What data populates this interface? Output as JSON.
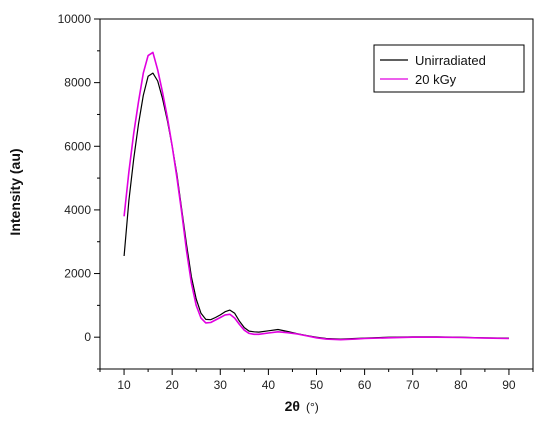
{
  "chart_data": {
    "type": "line",
    "title": "",
    "xlabel": "2θ",
    "xlabel_unit": "(°)",
    "ylabel": "Intensity (au)",
    "xlim": [
      5,
      95
    ],
    "ylim": [
      -1000,
      10000
    ],
    "xticks": [
      10,
      20,
      30,
      40,
      50,
      60,
      70,
      80,
      90
    ],
    "yticks": [
      0,
      2000,
      4000,
      6000,
      8000,
      10000
    ],
    "grid": false,
    "legend_position": "top-right",
    "series": [
      {
        "name": "Unirradiated",
        "color": "#000000",
        "x": [
          10,
          11,
          12,
          13,
          14,
          15,
          16,
          17,
          18,
          19,
          20,
          21,
          22,
          23,
          24,
          25,
          26,
          27,
          28,
          29,
          30,
          31,
          32,
          33,
          34,
          35,
          36,
          37,
          38,
          40,
          42,
          44,
          46,
          48,
          50,
          52,
          55,
          58,
          60,
          65,
          70,
          75,
          80,
          85,
          90
        ],
        "y": [
          2550,
          4300,
          5600,
          6700,
          7600,
          8200,
          8300,
          8050,
          7500,
          6800,
          6000,
          5100,
          4000,
          2900,
          1900,
          1200,
          750,
          560,
          550,
          620,
          700,
          800,
          850,
          750,
          500,
          300,
          190,
          170,
          160,
          200,
          240,
          180,
          110,
          50,
          0,
          -40,
          -60,
          -40,
          -30,
          0,
          10,
          10,
          0,
          -20,
          -30
        ]
      },
      {
        "name": "20 kGy",
        "color": "#e000e0",
        "x": [
          10,
          11,
          12,
          13,
          14,
          15,
          16,
          17,
          18,
          19,
          20,
          21,
          22,
          23,
          24,
          25,
          26,
          27,
          28,
          29,
          30,
          31,
          32,
          33,
          34,
          35,
          36,
          37,
          38,
          40,
          42,
          44,
          46,
          48,
          50,
          52,
          55,
          58,
          60,
          65,
          70,
          75,
          80,
          85,
          90
        ],
        "y": [
          3800,
          5200,
          6400,
          7400,
          8300,
          8850,
          8950,
          8400,
          7700,
          6900,
          6000,
          5000,
          3900,
          2700,
          1700,
          1000,
          600,
          450,
          460,
          540,
          620,
          700,
          720,
          600,
          400,
          220,
          120,
          90,
          90,
          130,
          170,
          140,
          100,
          40,
          -20,
          -60,
          -80,
          -60,
          -40,
          -20,
          0,
          0,
          -10,
          -30,
          -40
        ]
      }
    ]
  }
}
